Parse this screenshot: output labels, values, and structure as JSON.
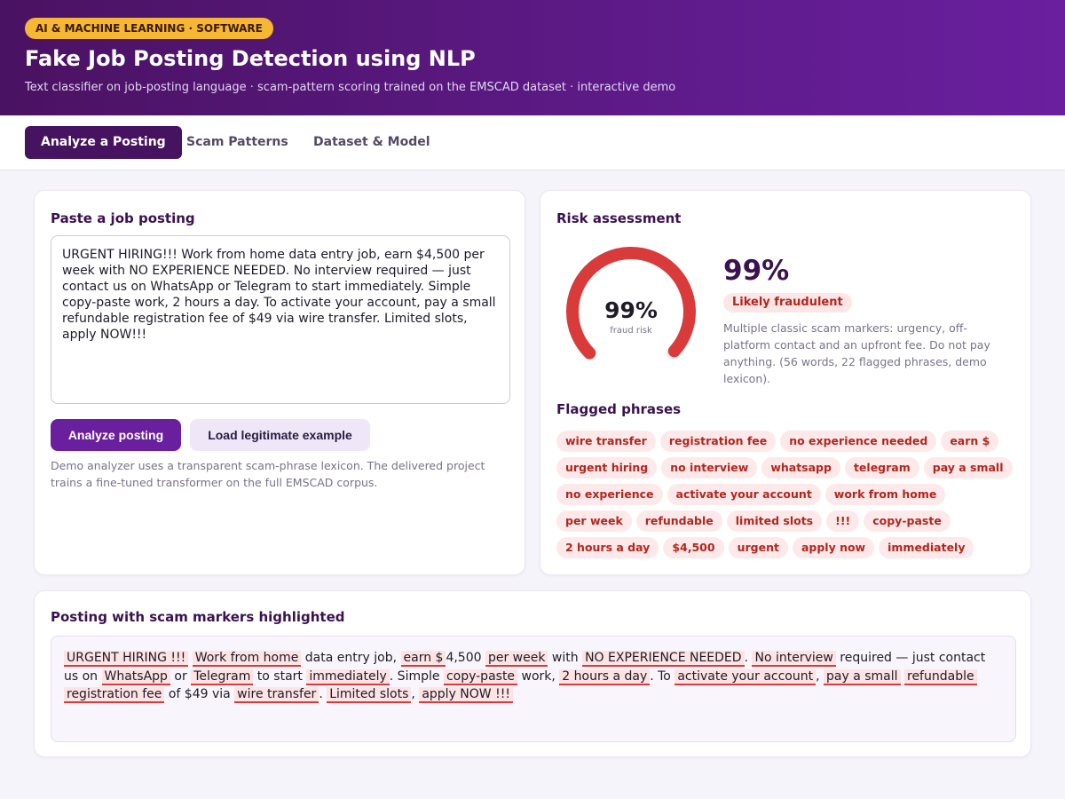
{
  "hero": {
    "badge": "AI & MACHINE LEARNING · SOFTWARE",
    "title": "Fake Job Posting Detection using NLP",
    "subtitle": "Text classifier on job-posting language · scam-pattern scoring trained on the EMSCAD dataset · interactive demo"
  },
  "tabs": [
    {
      "label": "Analyze a Posting",
      "active": true
    },
    {
      "label": "Scam Patterns",
      "active": false
    },
    {
      "label": "Dataset & Model",
      "active": false
    }
  ],
  "input_card": {
    "title": "Paste a job posting",
    "posting_text": "URGENT HIRING!!! Work from home data entry job, earn $4,500 per week with NO EXPERIENCE NEEDED. No interview required — just contact us on WhatsApp or Telegram to start immediately. Simple copy-paste work, 2 hours a day. To activate your account, pay a small refundable registration fee of $49 via wire transfer. Limited slots, apply NOW!!!",
    "analyze_label": "Analyze posting",
    "load_example_label": "Load legitimate example",
    "note": "Demo analyzer uses a transparent scam-phrase lexicon. The delivered project trains a fine-tuned transformer on the full EMSCAD corpus."
  },
  "risk_card": {
    "title": "Risk assessment",
    "gauge_value": "99%",
    "gauge_caption": "fraud risk",
    "risk_fraction": 0.99,
    "big_percent": "99%",
    "verdict": "Likely fraudulent",
    "summary": "Multiple classic scam markers: urgency, off-platform contact and an upfront fee. Do not pay anything. (56 words, 22 flagged phrases, demo lexicon).",
    "flagged_title": "Flagged phrases",
    "flagged_phrases": [
      "wire transfer",
      "registration fee",
      "no experience needed",
      "earn $",
      "urgent hiring",
      "no interview",
      "whatsapp",
      "telegram",
      "pay a small",
      "no experience",
      "activate your account",
      "work from home",
      "per week",
      "refundable",
      "limited slots",
      "!!!",
      "copy-paste",
      "2 hours a day",
      "$4,500",
      "urgent",
      "apply now",
      "immediately"
    ],
    "colors": {
      "gauge": "#d93b3b",
      "verdict_bg": "#fde6e6",
      "verdict_text": "#b3261e"
    }
  },
  "highlight_card": {
    "title": "Posting with scam markers highlighted",
    "segments": [
      {
        "t": "URGENT HIRING !!!",
        "m": true
      },
      {
        "t": " ",
        "m": false
      },
      {
        "t": "Work from home",
        "m": true
      },
      {
        "t": " data entry job, ",
        "m": false
      },
      {
        "t": "earn $",
        "m": true
      },
      {
        "t": "4,500 ",
        "m": false
      },
      {
        "t": "per week",
        "m": true
      },
      {
        "t": " with ",
        "m": false
      },
      {
        "t": "NO EXPERIENCE NEEDED",
        "m": true
      },
      {
        "t": ". ",
        "m": false
      },
      {
        "t": "No interview",
        "m": true
      },
      {
        "t": " required — just contact us on ",
        "m": false
      },
      {
        "t": "WhatsApp",
        "m": true
      },
      {
        "t": " or ",
        "m": false
      },
      {
        "t": "Telegram",
        "m": true
      },
      {
        "t": " to start ",
        "m": false
      },
      {
        "t": "immediately",
        "m": true
      },
      {
        "t": ". Simple ",
        "m": false
      },
      {
        "t": "copy-paste",
        "m": true
      },
      {
        "t": " work, ",
        "m": false
      },
      {
        "t": "2 hours a day",
        "m": true
      },
      {
        "t": ". To ",
        "m": false
      },
      {
        "t": "activate your account",
        "m": true
      },
      {
        "t": ", ",
        "m": false
      },
      {
        "t": "pay a small",
        "m": true
      },
      {
        "t": " ",
        "m": false
      },
      {
        "t": "refundable",
        "m": true
      },
      {
        "t": " ",
        "m": false
      },
      {
        "t": "registration fee",
        "m": true
      },
      {
        "t": " of $49 via ",
        "m": false
      },
      {
        "t": "wire transfer",
        "m": true
      },
      {
        "t": ". ",
        "m": false
      },
      {
        "t": "Limited slots",
        "m": true
      },
      {
        "t": ", ",
        "m": false
      },
      {
        "t": "apply NOW !!!",
        "m": true
      }
    ]
  }
}
